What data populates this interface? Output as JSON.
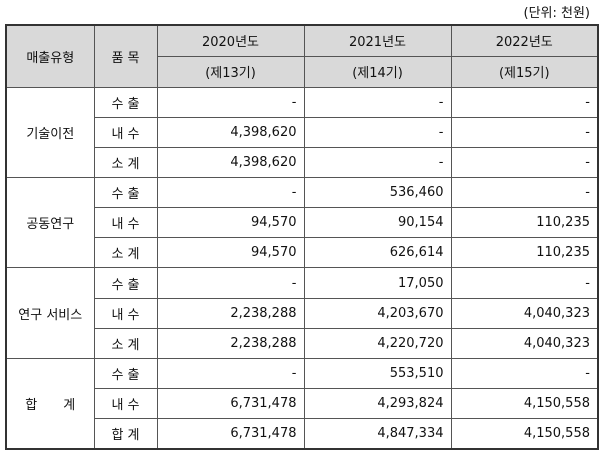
{
  "unit_label": "(단위: 천원)",
  "headers": {
    "category": "매출유형",
    "item": "품 목",
    "years": [
      "2020년도",
      "2021년도",
      "2022년도"
    ],
    "periods": [
      "(제13기)",
      "(제14기)",
      "(제15기)"
    ]
  },
  "groups": [
    {
      "name": "기술이전",
      "rows": [
        {
          "item": "수 출",
          "values": [
            "-",
            "-",
            "-"
          ]
        },
        {
          "item": "내 수",
          "values": [
            "4,398,620",
            "-",
            "-"
          ]
        },
        {
          "item": "소 계",
          "values": [
            "4,398,620",
            "-",
            "-"
          ]
        }
      ]
    },
    {
      "name": "공동연구",
      "rows": [
        {
          "item": "수 출",
          "values": [
            "-",
            "536,460",
            "-"
          ]
        },
        {
          "item": "내 수",
          "values": [
            "94,570",
            "90,154",
            "110,235"
          ]
        },
        {
          "item": "소 계",
          "values": [
            "94,570",
            "626,614",
            "110,235"
          ]
        }
      ]
    },
    {
      "name": "연구 서비스",
      "rows": [
        {
          "item": "수 출",
          "values": [
            "-",
            "17,050",
            "-"
          ]
        },
        {
          "item": "내 수",
          "values": [
            "2,238,288",
            "4,203,670",
            "4,040,323"
          ]
        },
        {
          "item": "소 계",
          "values": [
            "2,238,288",
            "4,220,720",
            "4,040,323"
          ]
        }
      ]
    },
    {
      "name": "합　　계",
      "rows": [
        {
          "item": "수 출",
          "values": [
            "-",
            "553,510",
            "-"
          ]
        },
        {
          "item": "내 수",
          "values": [
            "6,731,478",
            "4,293,824",
            "4,150,558"
          ]
        },
        {
          "item": "합 계",
          "values": [
            "6,731,478",
            "4,847,334",
            "4,150,558"
          ]
        }
      ]
    }
  ]
}
